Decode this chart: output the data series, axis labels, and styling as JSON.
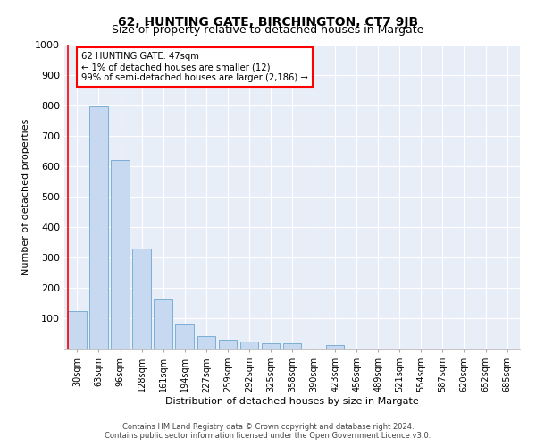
{
  "title": "62, HUNTING GATE, BIRCHINGTON, CT7 9JB",
  "subtitle": "Size of property relative to detached houses in Margate",
  "xlabel": "Distribution of detached houses by size in Margate",
  "ylabel": "Number of detached properties",
  "bar_labels": [
    "30sqm",
    "63sqm",
    "96sqm",
    "128sqm",
    "161sqm",
    "194sqm",
    "227sqm",
    "259sqm",
    "292sqm",
    "325sqm",
    "358sqm",
    "390sqm",
    "423sqm",
    "456sqm",
    "489sqm",
    "521sqm",
    "554sqm",
    "587sqm",
    "620sqm",
    "652sqm",
    "685sqm"
  ],
  "bar_values": [
    125,
    797,
    620,
    328,
    162,
    82,
    40,
    28,
    25,
    18,
    18,
    0,
    12,
    0,
    0,
    0,
    0,
    0,
    0,
    0,
    0
  ],
  "bar_color": "#c6d9f0",
  "bar_edge_color": "#7bafd4",
  "annotation_text_line1": "62 HUNTING GATE: 47sqm",
  "annotation_text_line2": "← 1% of detached houses are smaller (12)",
  "annotation_text_line3": "99% of semi-detached houses are larger (2,186) →",
  "ylim": [
    0,
    1000
  ],
  "yticks": [
    0,
    100,
    200,
    300,
    400,
    500,
    600,
    700,
    800,
    900,
    1000
  ],
  "footer_line1": "Contains HM Land Registry data © Crown copyright and database right 2024.",
  "footer_line2": "Contains public sector information licensed under the Open Government Licence v3.0.",
  "plot_bg_color": "#e8eef8"
}
